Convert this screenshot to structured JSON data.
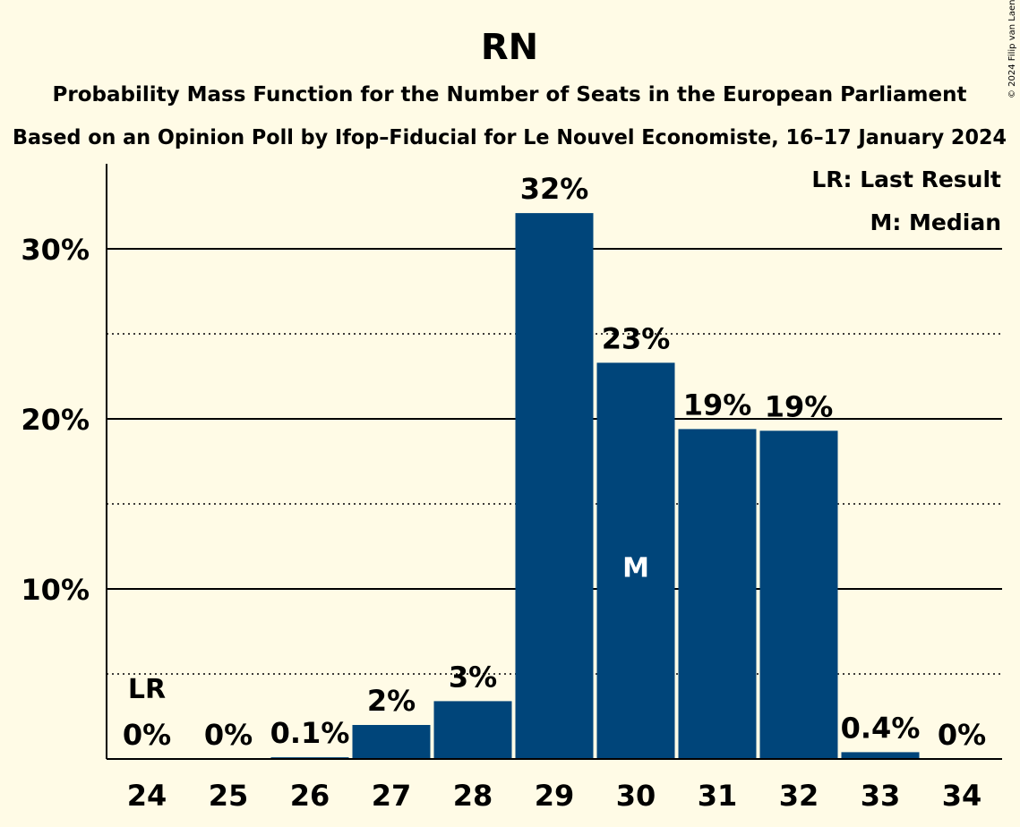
{
  "chart_data": {
    "type": "bar",
    "title": "RN",
    "subtitle": "Probability Mass Function for the Number of Seats in the European Parliament",
    "subtitle2": "Based on an Opinion Poll by Ifop–Fiducial for Le Nouvel Economiste, 16–17 January 2024",
    "copyright": "© 2024 Filip van Laenen",
    "categories": [
      "24",
      "25",
      "26",
      "27",
      "28",
      "29",
      "30",
      "31",
      "32",
      "33",
      "34"
    ],
    "values": [
      0,
      0,
      0.1,
      2,
      3.4,
      32.1,
      23.3,
      19.4,
      19.3,
      0.4,
      0
    ],
    "labels": [
      "0%",
      "0%",
      "0.1%",
      "2%",
      "3%",
      "32%",
      "23%",
      "19%",
      "19%",
      "0.4%",
      "0%"
    ],
    "ylim": [
      0,
      35
    ],
    "yticks": [
      {
        "value": 10,
        "label": "10%"
      },
      {
        "value": 20,
        "label": "20%"
      },
      {
        "value": 30,
        "label": "30%"
      }
    ],
    "minor_gridlines": [
      5,
      15,
      25
    ],
    "grid": true,
    "bar_color": "#00457a",
    "last_result": {
      "category": "24",
      "label": "LR"
    },
    "median": {
      "category": "30",
      "label": "M"
    },
    "legend": {
      "position": "top-right",
      "entries": [
        "LR: Last Result",
        "M: Median"
      ]
    }
  }
}
